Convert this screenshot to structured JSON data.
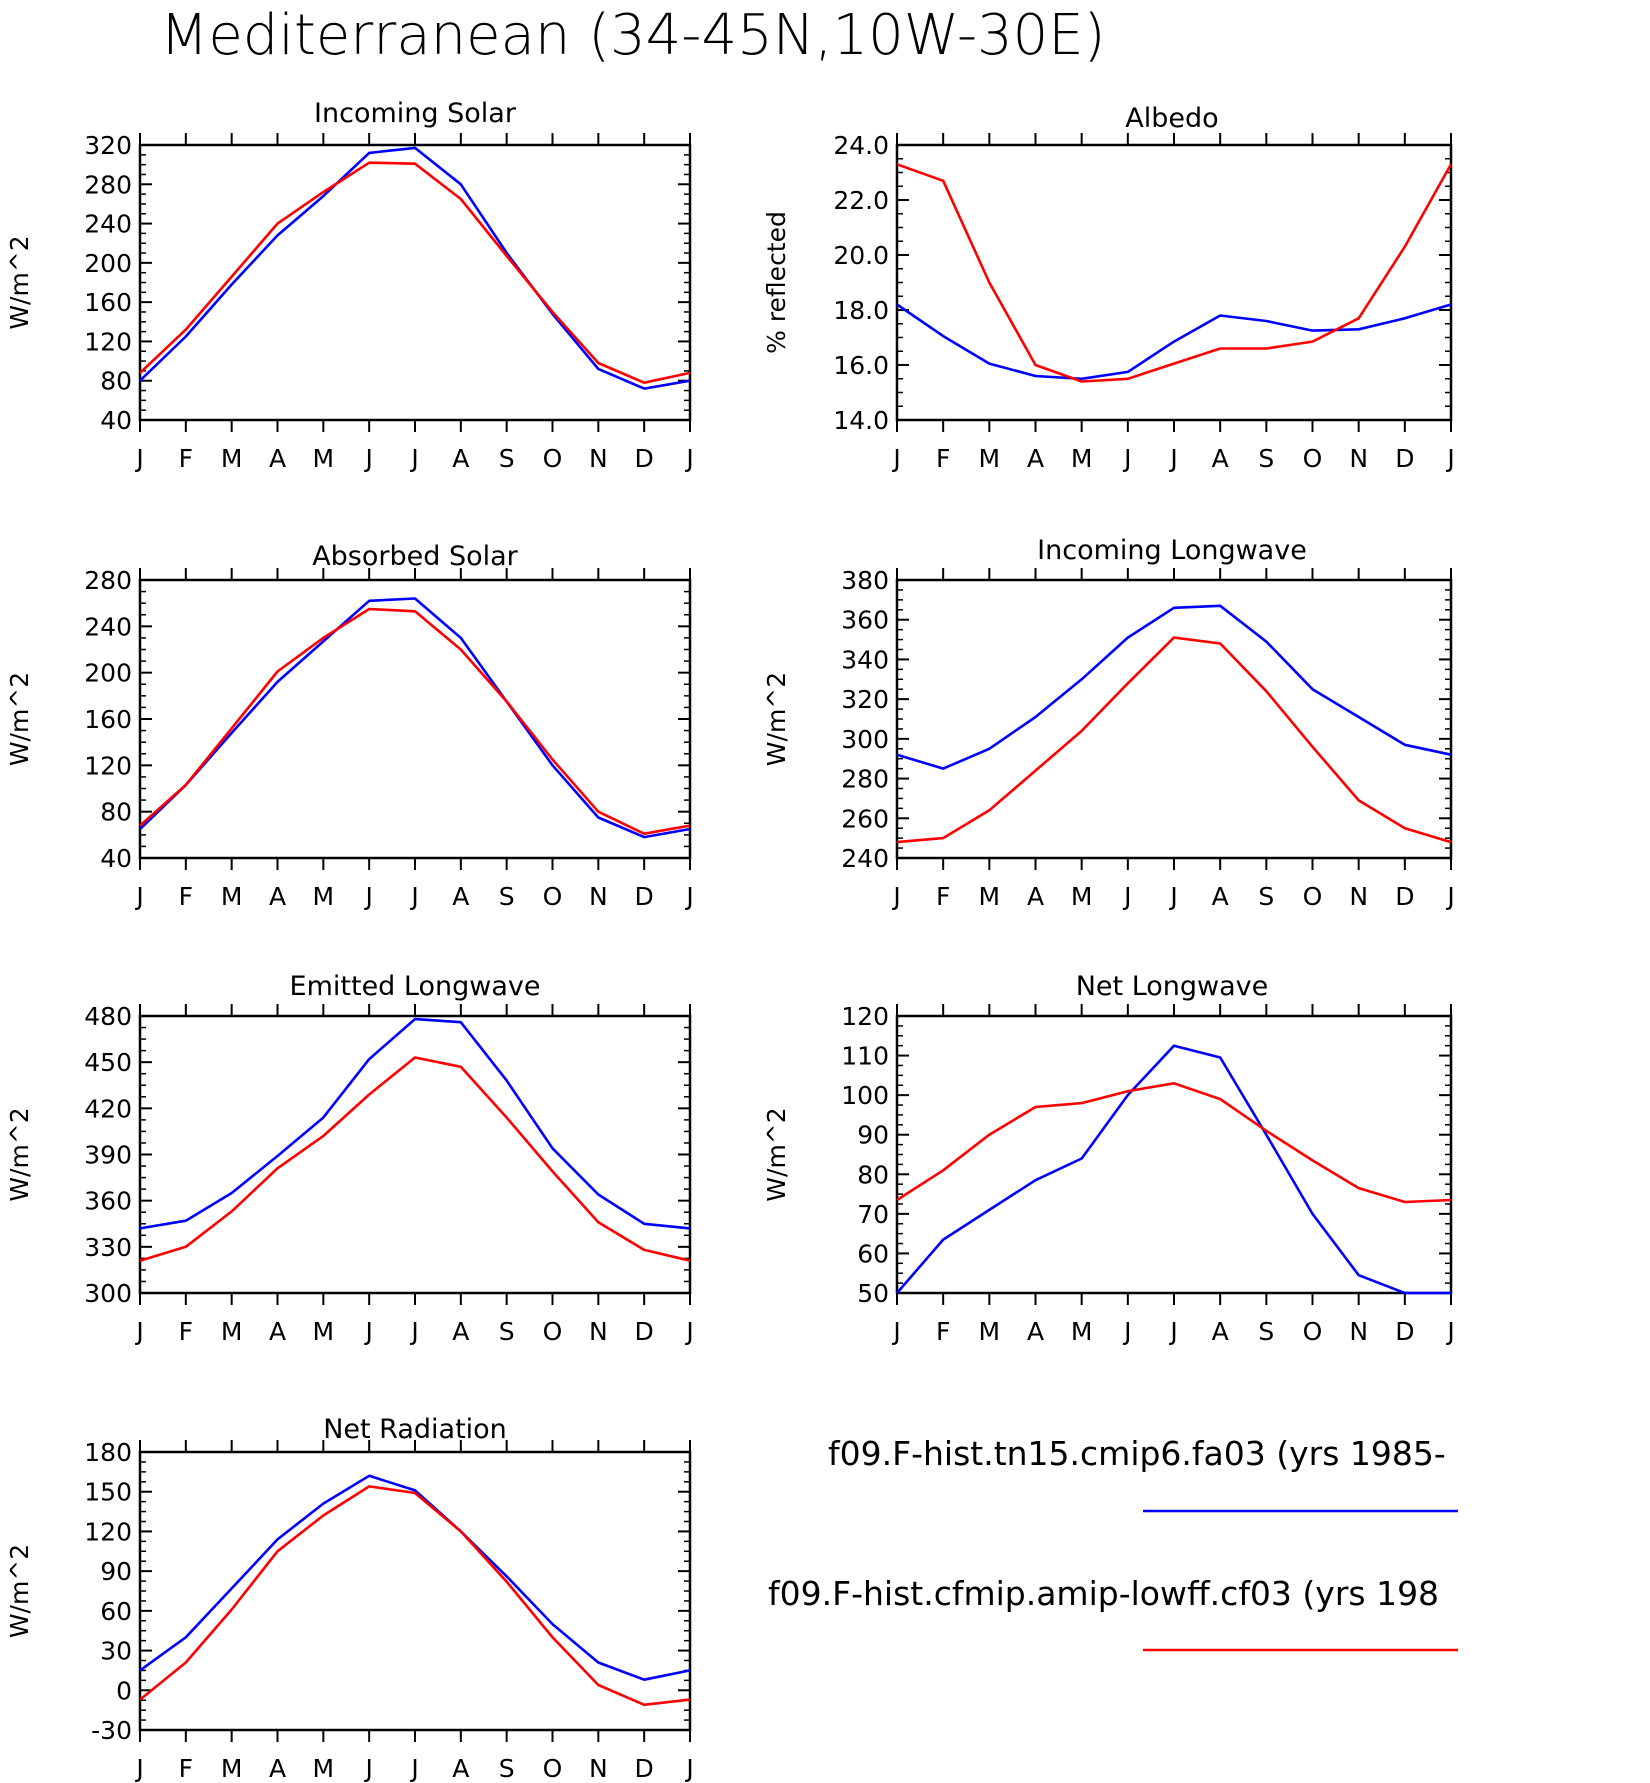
{
  "figure_title": "Mediterranean (34-45N,10W-30E)",
  "colors": {
    "series1": "#0000ff",
    "series2": "#ff0000"
  },
  "legend": [
    {
      "label": "f09.F-hist.tn15.cmip6.fa03 (yrs 1985-",
      "color": "#0000ff"
    },
    {
      "label": "f09.F-hist.cfmip.amip-lowff.cf03 (yrs 198",
      "color": "#ff0000"
    }
  ],
  "chart_data": [
    {
      "type": "line",
      "title": "Incoming Solar",
      "ylabel": "W/m^2",
      "categories": [
        "J",
        "F",
        "M",
        "A",
        "M",
        "J",
        "J",
        "A",
        "S",
        "O",
        "N",
        "D",
        "J"
      ],
      "ylim": [
        40,
        320
      ],
      "yticks": [
        "40",
        "80",
        "120",
        "160",
        "200",
        "240",
        "280",
        "320"
      ],
      "series": [
        {
          "values": [
            80,
            125,
            178,
            228,
            268,
            312,
            317,
            280,
            210,
            148,
            92,
            72,
            80
          ]
        },
        {
          "values": [
            88,
            132,
            186,
            240,
            272,
            302,
            301,
            265,
            207,
            150,
            98,
            78,
            88
          ]
        }
      ]
    },
    {
      "type": "line",
      "title": "Albedo",
      "ylabel": "% reflected",
      "categories": [
        "J",
        "F",
        "M",
        "A",
        "M",
        "J",
        "J",
        "A",
        "S",
        "O",
        "N",
        "D",
        "J"
      ],
      "ylim": [
        14.0,
        24.0
      ],
      "yticks": [
        "14.0",
        "16.0",
        "18.0",
        "20.0",
        "22.0",
        "24.0"
      ],
      "series": [
        {
          "values": [
            18.2,
            17.05,
            16.05,
            15.6,
            15.5,
            15.75,
            16.85,
            17.8,
            17.6,
            17.25,
            17.3,
            17.7,
            18.2
          ]
        },
        {
          "values": [
            23.3,
            22.7,
            19.0,
            16.0,
            15.4,
            15.5,
            16.05,
            16.6,
            16.6,
            16.85,
            17.7,
            20.3,
            23.3
          ]
        }
      ]
    },
    {
      "type": "line",
      "title": "Absorbed Solar",
      "ylabel": "W/m^2",
      "categories": [
        "J",
        "F",
        "M",
        "A",
        "M",
        "J",
        "J",
        "A",
        "S",
        "O",
        "N",
        "D",
        "J"
      ],
      "ylim": [
        40,
        280
      ],
      "yticks": [
        "40",
        "80",
        "120",
        "160",
        "200",
        "240",
        "280"
      ],
      "series": [
        {
          "values": [
            65,
            103,
            148,
            192,
            227,
            262,
            264,
            230,
            175,
            120,
            75,
            58,
            65
          ]
        },
        {
          "values": [
            68,
            103,
            152,
            201,
            230,
            255,
            253,
            220,
            175,
            125,
            80,
            61,
            68
          ]
        }
      ]
    },
    {
      "type": "line",
      "title": "Incoming Longwave",
      "ylabel": "W/m^2",
      "categories": [
        "J",
        "F",
        "M",
        "A",
        "M",
        "J",
        "J",
        "A",
        "S",
        "O",
        "N",
        "D",
        "J"
      ],
      "ylim": [
        240,
        380
      ],
      "yticks": [
        "240",
        "260",
        "280",
        "300",
        "320",
        "340",
        "360",
        "380"
      ],
      "series": [
        {
          "values": [
            292,
            285,
            295,
            311,
            330,
            351,
            366,
            367,
            349,
            325,
            311,
            297,
            292
          ]
        },
        {
          "values": [
            248,
            250,
            264,
            284,
            304,
            328,
            351,
            348,
            324,
            296,
            269,
            255,
            248
          ]
        }
      ]
    },
    {
      "type": "line",
      "title": "Emitted Longwave",
      "ylabel": "W/m^2",
      "categories": [
        "J",
        "F",
        "M",
        "A",
        "M",
        "J",
        "J",
        "A",
        "S",
        "O",
        "N",
        "D",
        "J"
      ],
      "ylim": [
        300,
        480
      ],
      "yticks": [
        "300",
        "330",
        "360",
        "390",
        "420",
        "450",
        "480"
      ],
      "series": [
        {
          "values": [
            342,
            347,
            365,
            389,
            414,
            452,
            478,
            476,
            438,
            394,
            364,
            345,
            342
          ]
        },
        {
          "values": [
            321,
            330,
            353,
            381,
            402,
            429,
            453,
            447,
            414,
            379,
            346,
            328,
            321
          ]
        }
      ]
    },
    {
      "type": "line",
      "title": "Net Longwave",
      "ylabel": "W/m^2",
      "categories": [
        "J",
        "F",
        "M",
        "A",
        "M",
        "J",
        "J",
        "A",
        "S",
        "O",
        "N",
        "D",
        "J"
      ],
      "ylim": [
        50,
        120
      ],
      "yticks": [
        "50",
        "60",
        "70",
        "80",
        "90",
        "100",
        "110",
        "120"
      ],
      "series": [
        {
          "values": [
            50,
            63.5,
            71,
            78.5,
            84,
            100,
            112.5,
            109.5,
            90,
            70,
            54.5,
            50,
            50
          ]
        },
        {
          "values": [
            73.5,
            81,
            90,
            97,
            98,
            101,
            103,
            99,
            91,
            83.5,
            76.5,
            73,
            73.5
          ]
        }
      ]
    },
    {
      "type": "line",
      "title": "Net Radiation",
      "ylabel": "W/m^2",
      "categories": [
        "J",
        "F",
        "M",
        "A",
        "M",
        "J",
        "J",
        "A",
        "S",
        "O",
        "N",
        "D",
        "J"
      ],
      "ylim": [
        -30,
        180
      ],
      "yticks": [
        "-30",
        "0",
        "30",
        "60",
        "90",
        "120",
        "150",
        "180"
      ],
      "series": [
        {
          "values": [
            15,
            40,
            77,
            114,
            141,
            162,
            151,
            120,
            86,
            50,
            21,
            8,
            15
          ]
        },
        {
          "values": [
            -7,
            21,
            61,
            105,
            132,
            154,
            149,
            120,
            82,
            40,
            4,
            -11,
            -7
          ]
        }
      ]
    }
  ]
}
